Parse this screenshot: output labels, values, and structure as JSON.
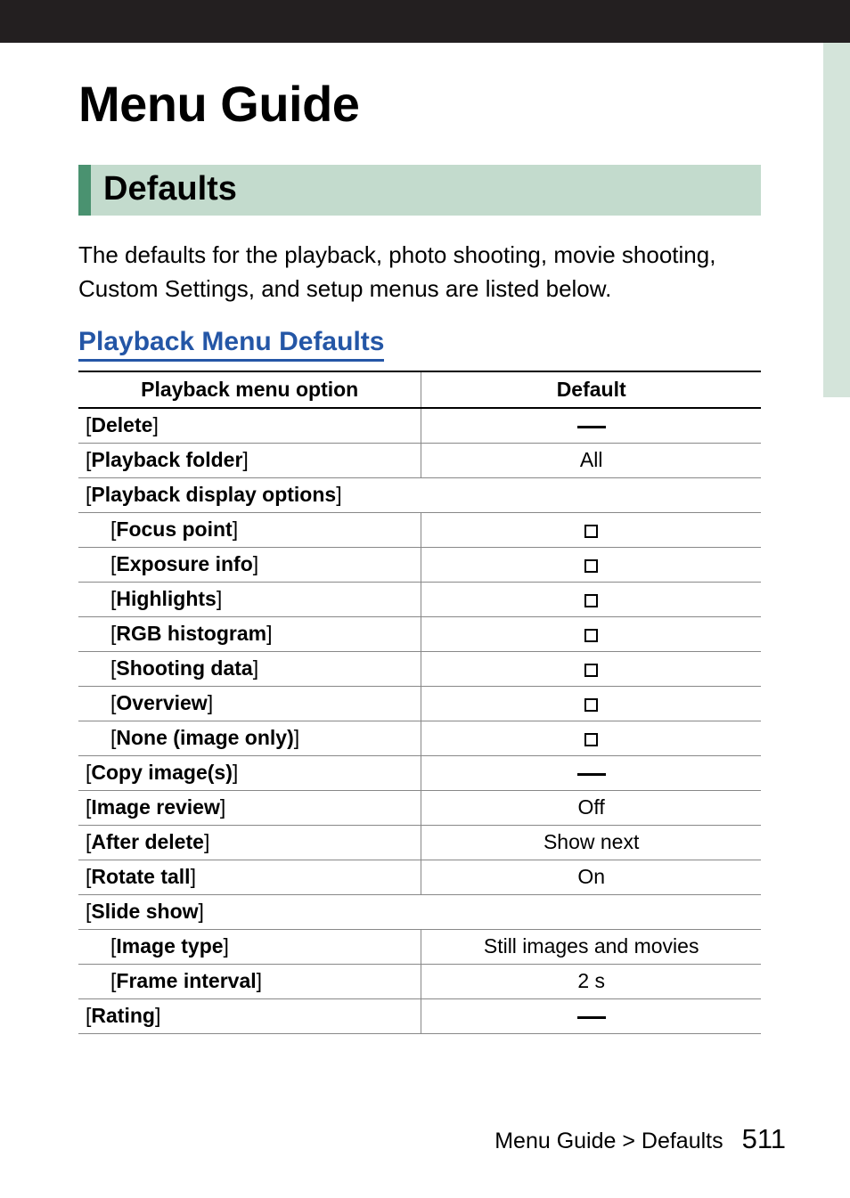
{
  "colors": {
    "top_band": "#231f20",
    "side_tab": "#d4e4da",
    "section_bg": "#c3dbcd",
    "section_border": "#4a9270",
    "subhead_color": "#2456a6",
    "text": "#000000",
    "rule_light": "#888888"
  },
  "title": "Menu Guide",
  "section_heading": "Defaults",
  "intro": "The defaults for the playback, photo shooting, movie shooting, Custom Settings, and setup menus are listed below.",
  "sub_heading": "Playback Menu Defaults",
  "table": {
    "header_option": "Playback menu option",
    "header_default": "Default",
    "rows": [
      {
        "label": "Delete",
        "value_type": "dash",
        "indent": false,
        "span": false
      },
      {
        "label": "Playback folder",
        "value_type": "text",
        "value": "All",
        "indent": false,
        "span": false
      },
      {
        "label": "Playback display options",
        "value_type": "none",
        "indent": false,
        "span": true
      },
      {
        "label": "Focus point",
        "value_type": "checkbox",
        "indent": true,
        "span": false
      },
      {
        "label": "Exposure info",
        "value_type": "checkbox",
        "indent": true,
        "span": false
      },
      {
        "label": "Highlights",
        "value_type": "checkbox",
        "indent": true,
        "span": false
      },
      {
        "label": "RGB histogram",
        "value_type": "checkbox",
        "indent": true,
        "span": false
      },
      {
        "label": "Shooting data",
        "value_type": "checkbox",
        "indent": true,
        "span": false
      },
      {
        "label": "Overview",
        "value_type": "checkbox",
        "indent": true,
        "span": false
      },
      {
        "label": "None (image only)",
        "value_type": "checkbox",
        "indent": true,
        "span": false
      },
      {
        "label": "Copy image(s)",
        "value_type": "dash",
        "indent": false,
        "span": false
      },
      {
        "label": "Image review",
        "value_type": "text",
        "value": "Off",
        "indent": false,
        "span": false
      },
      {
        "label": "After delete",
        "value_type": "text",
        "value": "Show next",
        "indent": false,
        "span": false
      },
      {
        "label": "Rotate tall",
        "value_type": "text",
        "value": "On",
        "indent": false,
        "span": false
      },
      {
        "label": "Slide show",
        "value_type": "none",
        "indent": false,
        "span": true
      },
      {
        "label": "Image type",
        "value_type": "text",
        "value": "Still images and movies",
        "indent": true,
        "span": false
      },
      {
        "label": "Frame interval",
        "value_type": "text",
        "value": "2 s",
        "indent": true,
        "span": false
      },
      {
        "label": "Rating",
        "value_type": "dash",
        "indent": false,
        "span": false
      }
    ]
  },
  "footer": {
    "breadcrumb": "Menu Guide > Defaults",
    "page": "511"
  }
}
